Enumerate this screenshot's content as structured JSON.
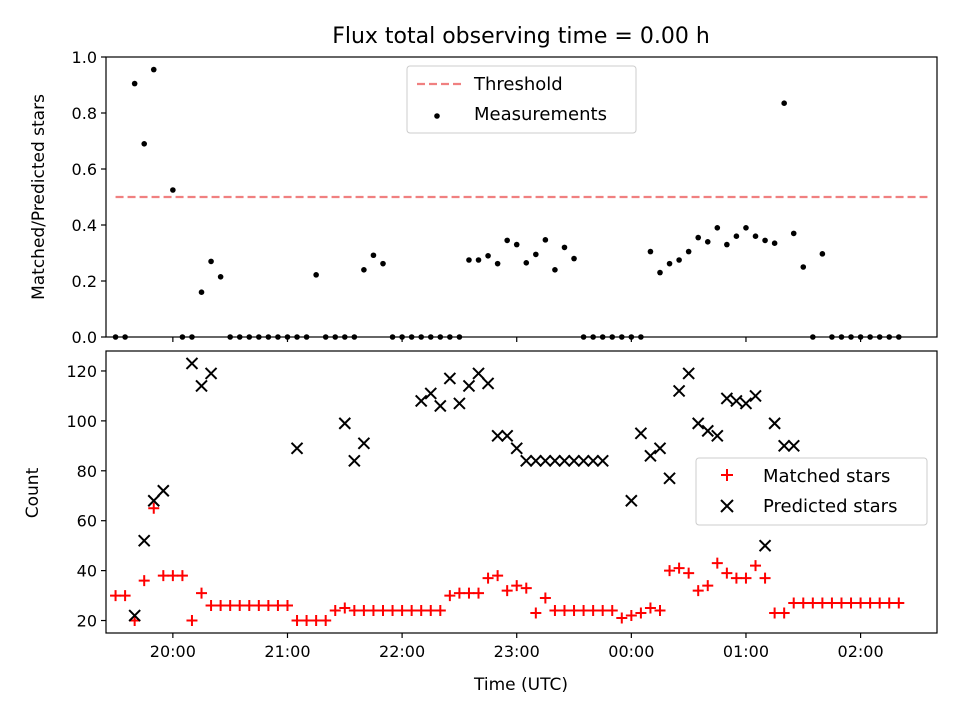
{
  "chart_data": [
    {
      "type": "scatter",
      "title": "Flux total observing time = 0.00 h",
      "xlabel": "",
      "ylabel": "Matched/Predicted stars",
      "ylim": [
        0,
        1.0
      ],
      "yticks": [
        "0.0",
        "0.2",
        "0.4",
        "0.6",
        "0.8",
        "1.0"
      ],
      "xlim": [
        "19:25",
        "02:40"
      ],
      "grid": false,
      "legend_position": "top-center",
      "threshold": {
        "name": "Threshold",
        "y": 0.5,
        "x_start": "19:30",
        "x_end": "02:35",
        "color": "#f08080",
        "style": "dashed"
      },
      "series": [
        {
          "name": "Measurements",
          "color": "#000000",
          "marker": "dot",
          "x": [
            "19:30",
            "19:35",
            "19:40",
            "19:45",
            "19:50",
            "20:00",
            "20:05",
            "20:10",
            "20:15",
            "20:20",
            "20:25",
            "20:30",
            "20:35",
            "20:40",
            "20:45",
            "20:50",
            "20:55",
            "21:00",
            "21:05",
            "21:10",
            "21:15",
            "21:20",
            "21:25",
            "21:30",
            "21:35",
            "21:40",
            "21:45",
            "21:50",
            "21:55",
            "22:00",
            "22:05",
            "22:10",
            "22:15",
            "22:20",
            "22:25",
            "22:30",
            "22:35",
            "22:40",
            "22:45",
            "22:50",
            "22:55",
            "23:00",
            "23:05",
            "23:10",
            "23:15",
            "23:20",
            "23:25",
            "23:30",
            "23:35",
            "23:40",
            "23:45",
            "23:50",
            "23:55",
            "00:00",
            "00:05",
            "00:10",
            "00:15",
            "00:20",
            "00:25",
            "00:30",
            "00:35",
            "00:40",
            "00:45",
            "00:50",
            "00:55",
            "01:00",
            "01:05",
            "01:10",
            "01:15",
            "01:20",
            "01:25",
            "01:30",
            "01:35",
            "01:40",
            "01:45",
            "01:50",
            "01:55",
            "02:00",
            "02:05",
            "02:10",
            "02:15",
            "02:20"
          ],
          "y": [
            0,
            0,
            0.905,
            0.69,
            0.955,
            0.525,
            0,
            0,
            0.16,
            0.27,
            0.215,
            0,
            0,
            0,
            0,
            0,
            0,
            0,
            0,
            0,
            0.222,
            0,
            0,
            0,
            0,
            0.24,
            0.292,
            0.262,
            0,
            0,
            0,
            0,
            0,
            0,
            0,
            0,
            0.275,
            0.275,
            0.29,
            0.262,
            0.345,
            0.33,
            0.265,
            0.295,
            0.347,
            0.24,
            0.32,
            0.28,
            0,
            0,
            0,
            0,
            0,
            0,
            0,
            0.305,
            0.23,
            0.262,
            0.275,
            0.305,
            0.355,
            0.34,
            0.39,
            0.33,
            0.36,
            0.39,
            0.36,
            0.345,
            0.335,
            0.835,
            0.37,
            0.25,
            0,
            0.297,
            0,
            0,
            0,
            0,
            0,
            0,
            0,
            0
          ]
        }
      ]
    },
    {
      "type": "scatter",
      "title": "",
      "xlabel": "Time (UTC)",
      "ylabel": "Count",
      "ylim": [
        15,
        128
      ],
      "yticks": [
        "20",
        "40",
        "60",
        "80",
        "100",
        "120"
      ],
      "xticks": [
        "20:00",
        "21:00",
        "22:00",
        "23:00",
        "00:00",
        "01:00",
        "02:00"
      ],
      "xlim": [
        "19:25",
        "02:40"
      ],
      "grid": false,
      "legend_position": "right",
      "series": [
        {
          "name": "Matched stars",
          "color": "#ff0000",
          "marker": "plus",
          "x": [
            "19:30",
            "19:35",
            "19:40",
            "19:45",
            "19:50",
            "19:55",
            "20:00",
            "20:05",
            "20:10",
            "20:15",
            "20:20",
            "20:25",
            "20:30",
            "20:35",
            "20:40",
            "20:45",
            "20:50",
            "20:55",
            "21:00",
            "21:05",
            "21:10",
            "21:15",
            "21:20",
            "21:25",
            "21:30",
            "21:35",
            "21:40",
            "21:45",
            "21:50",
            "21:55",
            "22:00",
            "22:05",
            "22:10",
            "22:15",
            "22:20",
            "22:25",
            "22:30",
            "22:35",
            "22:40",
            "22:45",
            "22:50",
            "22:55",
            "23:00",
            "23:05",
            "23:10",
            "23:15",
            "23:20",
            "23:25",
            "23:30",
            "23:35",
            "23:40",
            "23:45",
            "23:50",
            "23:55",
            "00:00",
            "00:05",
            "00:10",
            "00:15",
            "00:20",
            "00:25",
            "00:30",
            "00:35",
            "00:40",
            "00:45",
            "00:50",
            "00:55",
            "01:00",
            "01:05",
            "01:10",
            "01:15",
            "01:20",
            "01:25",
            "01:30",
            "01:35",
            "01:40",
            "01:45",
            "01:50",
            "01:55",
            "02:00",
            "02:05",
            "02:10",
            "02:15",
            "02:20"
          ],
          "y": [
            30,
            30,
            20,
            36,
            65,
            38,
            38,
            38,
            20,
            31,
            26,
            26,
            26,
            26,
            26,
            26,
            26,
            26,
            26,
            20,
            20,
            20,
            20,
            24,
            25,
            24,
            24,
            24,
            24,
            24,
            24,
            24,
            24,
            24,
            24,
            30,
            31,
            31,
            31,
            37,
            38,
            32,
            34,
            33,
            23,
            29,
            24,
            24,
            24,
            24,
            24,
            24,
            24,
            21,
            22,
            23,
            25,
            24,
            40,
            41,
            39,
            32,
            34,
            43,
            39,
            37,
            37,
            42,
            37,
            23,
            23,
            27,
            27,
            27,
            27,
            27,
            27,
            27,
            27,
            27,
            27,
            27,
            27
          ]
        },
        {
          "name": "Predicted stars",
          "color": "#000000",
          "marker": "x",
          "x": [
            "19:40",
            "19:45",
            "19:50",
            "19:55",
            "20:10",
            "20:15",
            "20:20",
            "21:05",
            "21:30",
            "21:35",
            "21:40",
            "22:10",
            "22:15",
            "22:20",
            "22:25",
            "22:30",
            "22:35",
            "22:40",
            "22:45",
            "22:50",
            "22:55",
            "23:00",
            "23:05",
            "23:10",
            "23:15",
            "23:20",
            "23:25",
            "23:30",
            "23:35",
            "23:40",
            "23:45",
            "00:00",
            "00:05",
            "00:10",
            "00:15",
            "00:20",
            "00:25",
            "00:30",
            "00:35",
            "00:40",
            "00:45",
            "00:50",
            "00:55",
            "01:00",
            "01:05",
            "01:10",
            "01:15",
            "01:20",
            "01:25"
          ],
          "y": [
            22,
            52,
            68,
            72,
            123,
            114,
            119,
            89,
            99,
            84,
            91,
            108,
            111,
            106,
            117,
            107,
            114,
            119,
            115,
            94,
            94,
            89,
            84,
            84,
            84,
            84,
            84,
            84,
            84,
            84,
            84,
            68,
            95,
            86,
            89,
            77,
            112,
            119,
            99,
            96,
            94,
            109,
            108,
            107,
            110,
            50,
            99,
            90,
            90
          ]
        }
      ]
    }
  ]
}
